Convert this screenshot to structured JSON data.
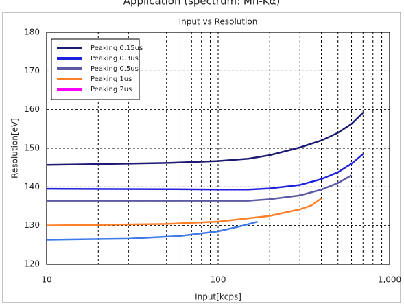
{
  "chart_data": {
    "type": "line",
    "suptitle": "Application (spectrum: Mn-Kα)",
    "title": "Input vs Resolution",
    "x_label": "Input[kcps]",
    "y_label": "Resolution[eV]",
    "xscale": "log",
    "xlim": [
      10,
      1000
    ],
    "xticks": [
      10,
      100,
      {
        "value": 1000,
        "label": "1,000"
      }
    ],
    "xminor": [
      20,
      30,
      40,
      50,
      60,
      70,
      80,
      90,
      200,
      300,
      400,
      500,
      600,
      700,
      800,
      900
    ],
    "ylim": [
      120,
      180
    ],
    "yticks": [
      120,
      130,
      140,
      150,
      160,
      170,
      180
    ],
    "grid": true,
    "legend": "upper left",
    "series": [
      {
        "name": "Peaking 0.15us",
        "color": "#1b1b72",
        "x": [
          10,
          20,
          50,
          100,
          150,
          200,
          300,
          400,
          500,
          600,
          700
        ],
        "values": [
          145.7,
          145.9,
          146.2,
          146.7,
          147.3,
          148.2,
          150.2,
          152,
          154,
          156.3,
          159.2
        ]
      },
      {
        "name": "Peaking 0.3us",
        "color": "#2020e0",
        "x": [
          10,
          50,
          100,
          150,
          200,
          300,
          400,
          500,
          600,
          700
        ],
        "values": [
          139.5,
          139.4,
          139.3,
          139.3,
          139.6,
          140.5,
          142,
          143.8,
          146,
          148.5
        ]
      },
      {
        "name": "Peaking 0.5us",
        "color": "#5a5aa6",
        "x": [
          10,
          100,
          150,
          200,
          300,
          400,
          500,
          600
        ],
        "values": [
          136.4,
          136.4,
          136.4,
          136.8,
          137.8,
          139.3,
          141,
          143
        ]
      },
      {
        "name": "Peaking 1us",
        "color": "#ff7f27",
        "x": [
          10,
          50,
          100,
          200,
          300,
          350,
          400
        ],
        "values": [
          130,
          130.4,
          131,
          132.5,
          134.2,
          135.2,
          137
        ]
      },
      {
        "name": "Peaking 2us",
        "color": "#3d7ae8",
        "legend_color": "#ff00ff",
        "x": [
          10,
          30,
          60,
          100,
          140,
          170
        ],
        "values": [
          126.3,
          126.6,
          127.3,
          128.5,
          130,
          131
        ]
      }
    ]
  }
}
